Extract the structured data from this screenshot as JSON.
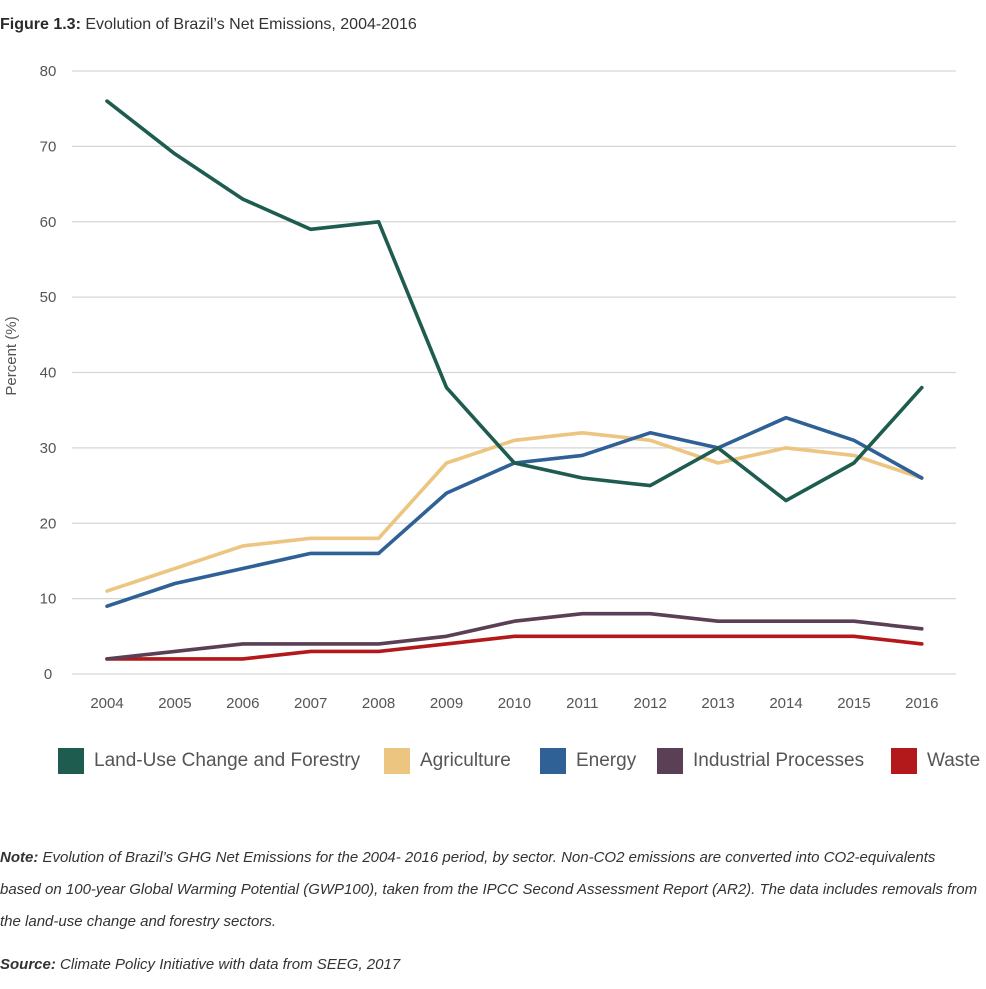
{
  "figure": {
    "label": "Figure 1.3:",
    "title": "Evolution of Brazil’s Net Emissions, 2004-2016"
  },
  "chart_data": {
    "type": "line",
    "title": "Evolution of Brazil’s Net Emissions, 2004-2016",
    "xlabel": "",
    "ylabel": "Percent (%)",
    "ylim": [
      0,
      80
    ],
    "yticks": [
      "0",
      "10",
      "20",
      "30",
      "40",
      "50",
      "60",
      "70",
      "80"
    ],
    "grid": "horizontal",
    "legend": "bottom",
    "categories": [
      "2004",
      "2005",
      "2006",
      "2007",
      "2008",
      "2009",
      "2010",
      "2011",
      "2012",
      "2013",
      "2014",
      "2015",
      "2016"
    ],
    "series": [
      {
        "name": "Land-Use Change and Forestry",
        "color": "#1d5c4f",
        "values": [
          76,
          69,
          63,
          59,
          60,
          38,
          28,
          26,
          25,
          30,
          23,
          28,
          38
        ]
      },
      {
        "name": "Agriculture",
        "color": "#ecc580",
        "values": [
          11,
          14,
          17,
          18,
          18,
          28,
          31,
          32,
          31,
          28,
          30,
          29,
          26
        ]
      },
      {
        "name": "Energy",
        "color": "#2f6196",
        "values": [
          9,
          12,
          14,
          16,
          16,
          24,
          28,
          29,
          32,
          30,
          34,
          31,
          26
        ]
      },
      {
        "name": "Industrial Processes",
        "color": "#5a3f55",
        "values": [
          2,
          3,
          4,
          4,
          4,
          5,
          7,
          8,
          8,
          7,
          7,
          7,
          6
        ]
      },
      {
        "name": "Waste",
        "color": "#b3191b",
        "values": [
          2,
          2,
          2,
          3,
          3,
          4,
          5,
          5,
          5,
          5,
          5,
          5,
          4
        ]
      }
    ]
  },
  "note": {
    "label": "Note:",
    "text": "Evolution of Brazil’s GHG Net Emissions for the 2004- 2016 period, by sector. Non-CO2 emissions are converted into CO2-equivalents based on 100-year Global Warming Potential (GWP100), taken from the IPCC Second Assessment Report (AR2). The data includes removals from the land-use change and forestry sectors."
  },
  "source": {
    "label": "Source:",
    "text": "Climate Policy Initiative with data from SEEG, 2017"
  }
}
